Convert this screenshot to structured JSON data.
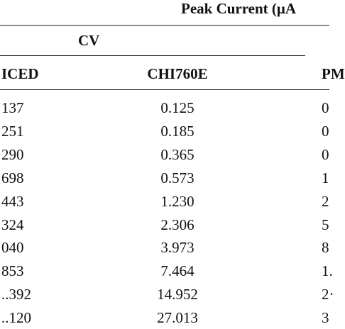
{
  "header": {
    "title": "Peak Current (μA",
    "group": "CV"
  },
  "table": {
    "columns": [
      "ICED",
      "CHI760E",
      "PM"
    ],
    "rows": [
      [
        "137",
        "0.125",
        "0"
      ],
      [
        "251",
        "0.185",
        "0"
      ],
      [
        "290",
        "0.365",
        "0"
      ],
      [
        "698",
        "0.573",
        "1"
      ],
      [
        "443",
        "1.230",
        "2"
      ],
      [
        "324",
        "2.306",
        "5"
      ],
      [
        "040",
        "3.973",
        "8"
      ],
      [
        "853",
        "7.464",
        "1."
      ],
      [
        "..392",
        "14.952",
        "2·"
      ],
      [
        "..120",
        "27.013",
        "3"
      ]
    ]
  }
}
